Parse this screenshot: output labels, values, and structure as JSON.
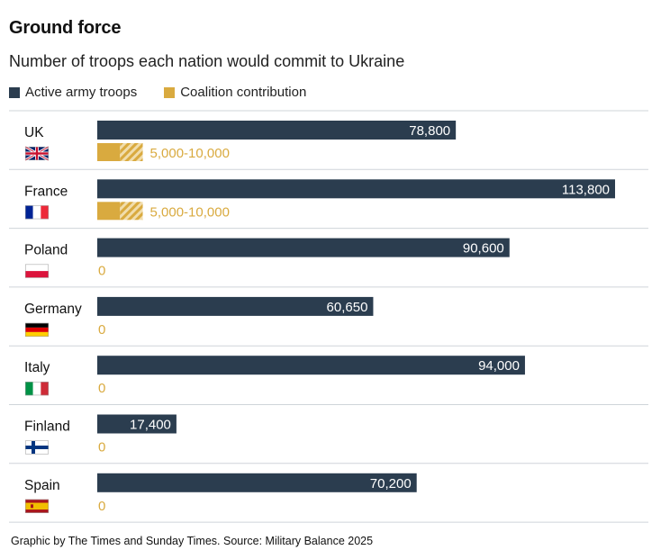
{
  "header": {
    "title": "Ground force",
    "subtitle": "Number of troops each nation would commit to Ukraine"
  },
  "legend": {
    "items": [
      {
        "label": "Active army troops",
        "color": "#2b3d4f"
      },
      {
        "label": "Coalition contribution",
        "color": "#d9aa3f"
      }
    ]
  },
  "footer": {
    "source": "Graphic by The Times and Sunday Times. Source: Military Balance 2025"
  },
  "colors": {
    "army": "#2b3d4f",
    "coalition": "#d9aa3f",
    "divider": "#cfd4d9"
  },
  "chart_data": {
    "type": "bar",
    "orientation": "horizontal",
    "categories": [
      "UK",
      "France",
      "Poland",
      "Germany",
      "Italy",
      "Finland",
      "Spain"
    ],
    "flags": [
      "uk-flag-icon",
      "france-flag-icon",
      "poland-flag-icon",
      "germany-flag-icon",
      "italy-flag-icon",
      "finland-flag-icon",
      "spain-flag-icon"
    ],
    "series": [
      {
        "name": "Active army troops",
        "values": [
          78800,
          113800,
          90600,
          60650,
          94000,
          17400,
          70200
        ],
        "labels": [
          "78,800",
          "113,800",
          "90,600",
          "60,650",
          "94,000",
          "17,400",
          "70,200"
        ]
      },
      {
        "name": "Coalition contribution",
        "values": [
          [
            5000,
            10000
          ],
          [
            5000,
            10000
          ],
          0,
          0,
          0,
          0,
          0
        ],
        "labels": [
          "5,000-10,000",
          "5,000-10,000",
          "0",
          "0",
          "0",
          "0",
          "0"
        ]
      }
    ],
    "xlim": [
      0,
      113800
    ],
    "grid": false,
    "legend": "top-left"
  }
}
